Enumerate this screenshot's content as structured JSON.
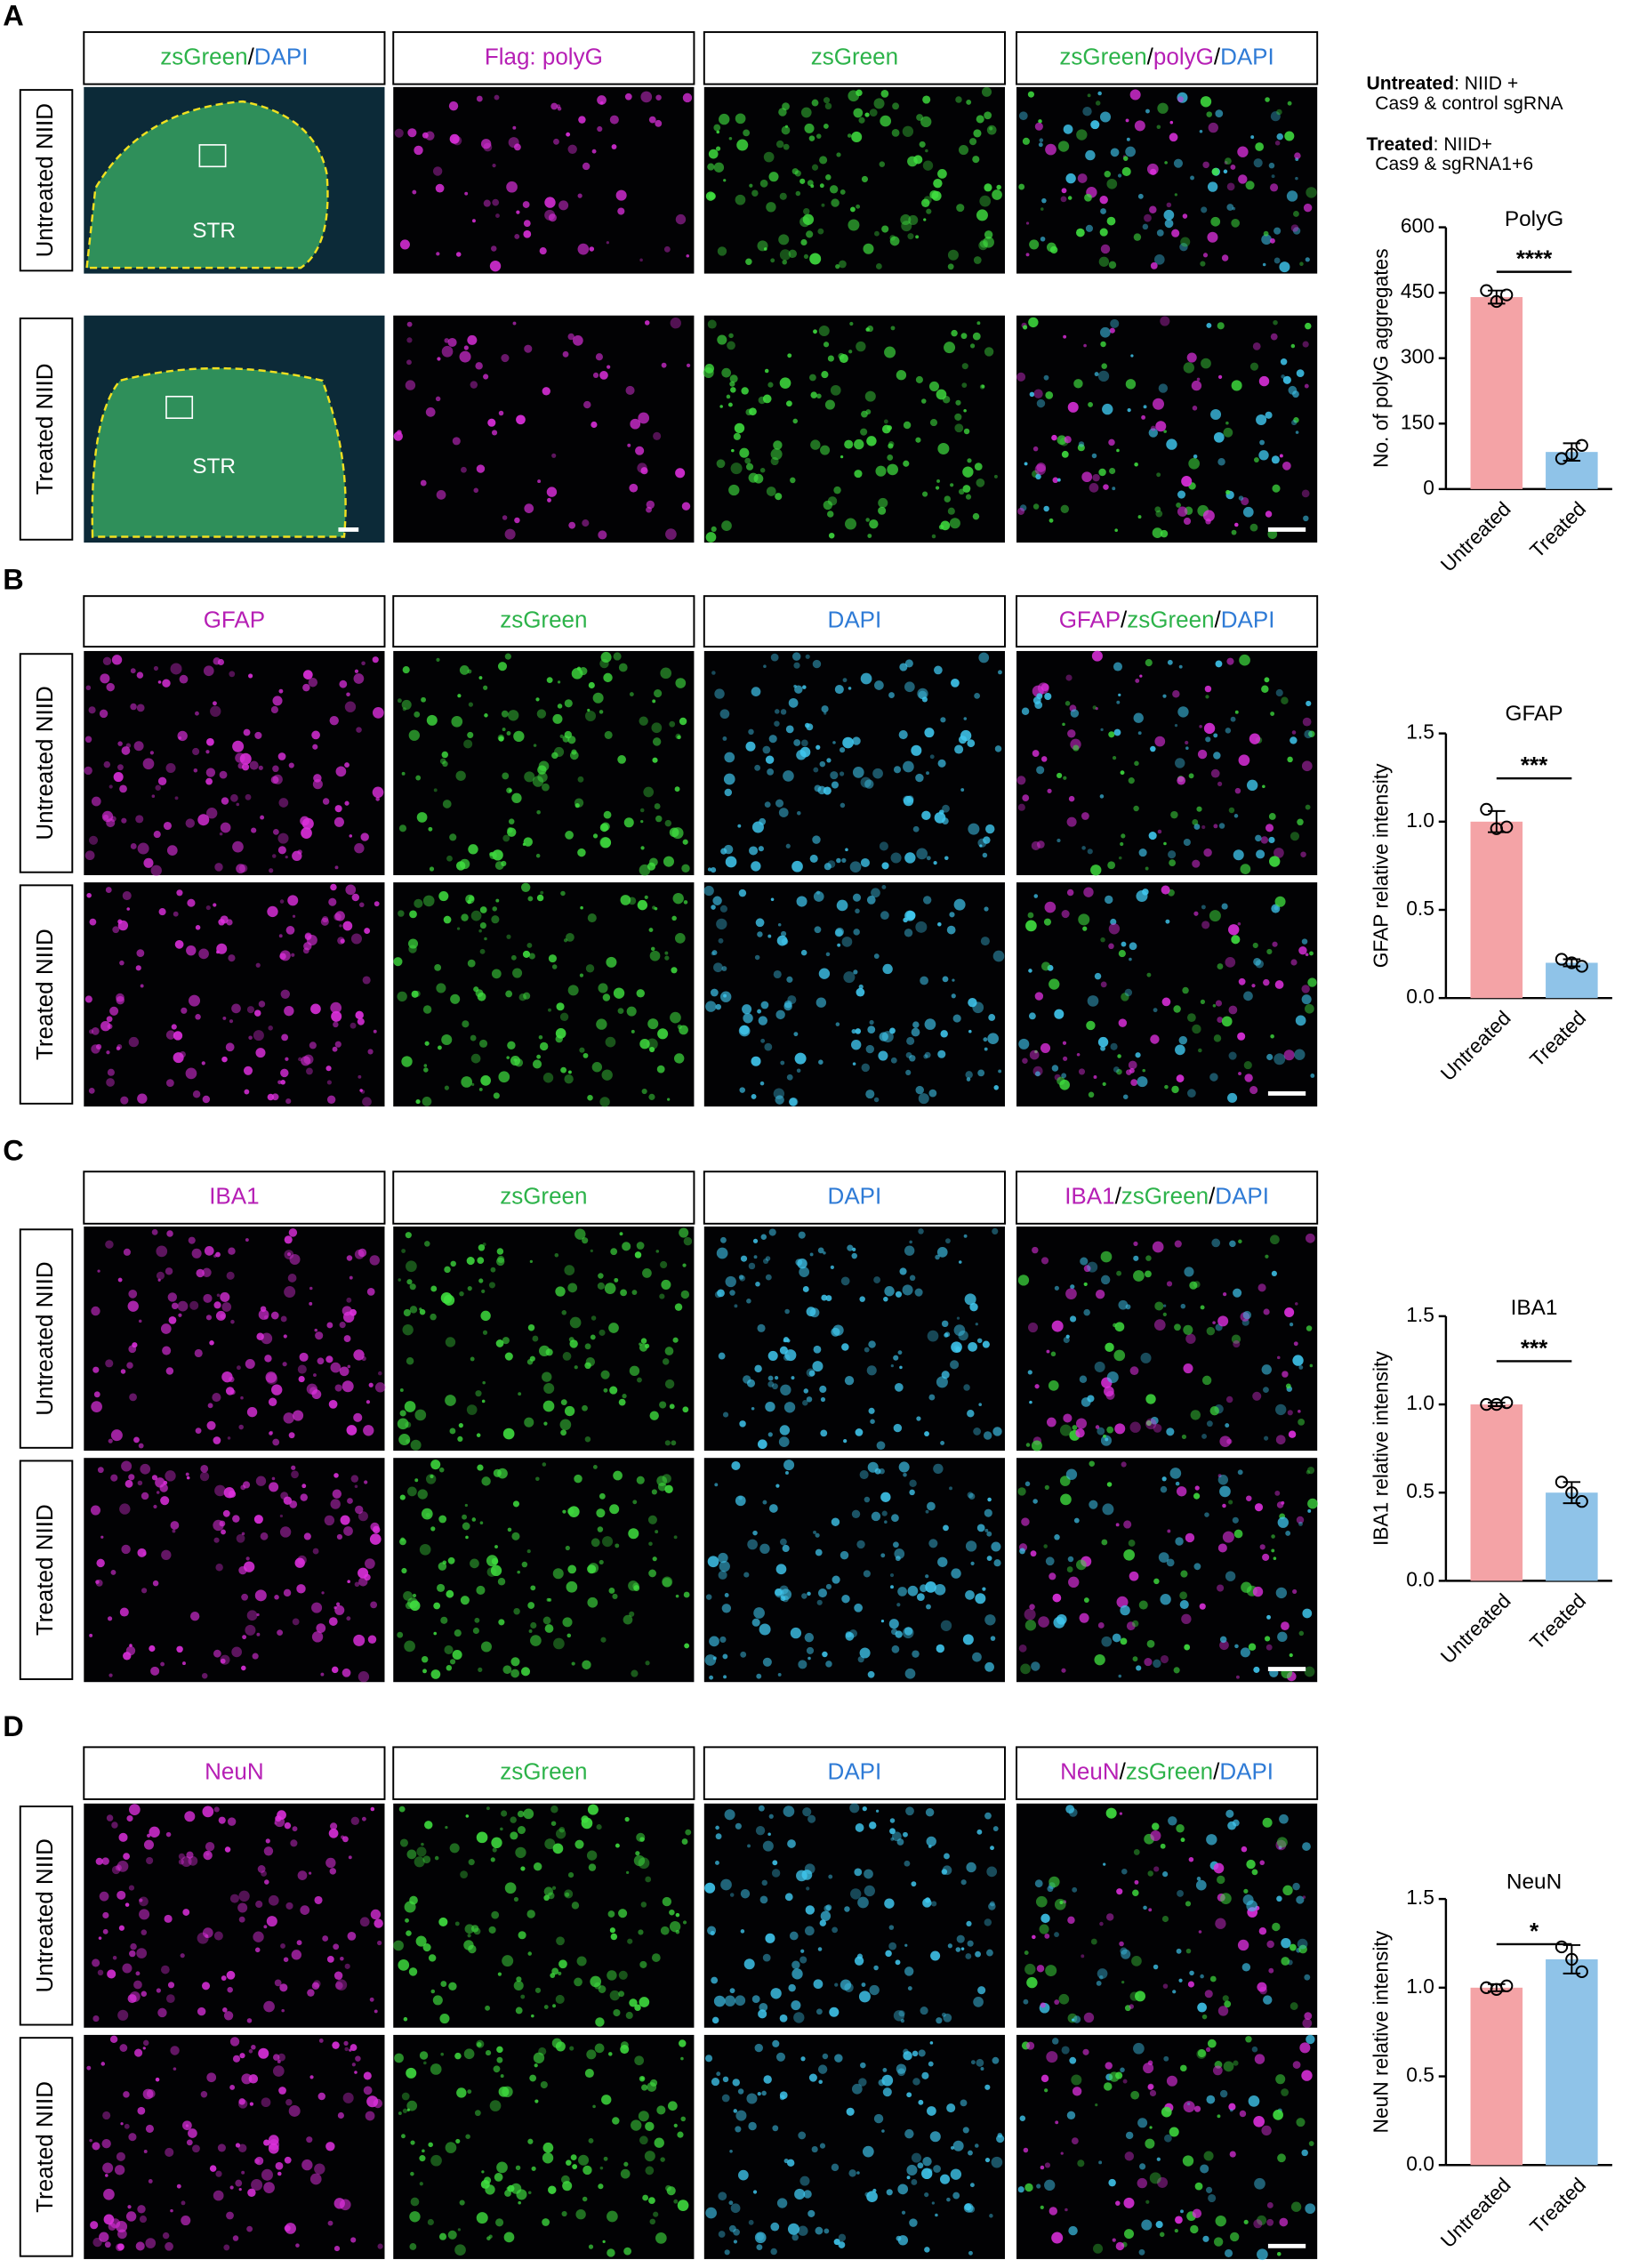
{
  "panels": [
    {
      "label": "A",
      "headers": [
        [
          {
            "text": "zsGreen",
            "color": "#2db34a"
          },
          {
            "text": "/",
            "color": "#000000"
          },
          {
            "text": "DAPI",
            "color": "#2f7bd6"
          }
        ],
        [
          {
            "text": "Flag: polyG",
            "color": "#b61fb5"
          }
        ],
        [
          {
            "text": "zsGreen",
            "color": "#2db34a"
          }
        ],
        [
          {
            "text": "zsGreen",
            "color": "#2db34a"
          },
          {
            "text": "/",
            "color": "#000000"
          },
          {
            "text": "polyG",
            "color": "#b61fb5"
          },
          {
            "text": "/",
            "color": "#000000"
          },
          {
            "text": "DAPI",
            "color": "#2f7bd6"
          }
        ]
      ],
      "rows": [
        "Untreated NIID",
        "Treated NIID"
      ],
      "region_labels": [
        "STR",
        "STR"
      ]
    },
    {
      "label": "B",
      "headers": [
        [
          {
            "text": "GFAP",
            "color": "#b61fb5"
          }
        ],
        [
          {
            "text": "zsGreen",
            "color": "#2db34a"
          }
        ],
        [
          {
            "text": "DAPI",
            "color": "#2f7bd6"
          }
        ],
        [
          {
            "text": "GFAP",
            "color": "#b61fb5"
          },
          {
            "text": "/",
            "color": "#000000"
          },
          {
            "text": "zsGreen",
            "color": "#2db34a"
          },
          {
            "text": "/",
            "color": "#000000"
          },
          {
            "text": "DAPI",
            "color": "#2f7bd6"
          }
        ]
      ],
      "rows": [
        "Untreated NIID",
        "Treated NIID"
      ]
    },
    {
      "label": "C",
      "headers": [
        [
          {
            "text": "IBA1",
            "color": "#b61fb5"
          }
        ],
        [
          {
            "text": "zsGreen",
            "color": "#2db34a"
          }
        ],
        [
          {
            "text": "DAPI",
            "color": "#2f7bd6"
          }
        ],
        [
          {
            "text": "IBA1",
            "color": "#b61fb5"
          },
          {
            "text": "/",
            "color": "#000000"
          },
          {
            "text": "zsGreen",
            "color": "#2db34a"
          },
          {
            "text": "/",
            "color": "#000000"
          },
          {
            "text": "DAPI",
            "color": "#2f7bd6"
          }
        ]
      ],
      "rows": [
        "Untreated NIID",
        "Treated NIID"
      ]
    },
    {
      "label": "D",
      "headers": [
        [
          {
            "text": "NeuN",
            "color": "#b61fb5"
          }
        ],
        [
          {
            "text": "zsGreen",
            "color": "#2db34a"
          }
        ],
        [
          {
            "text": "DAPI",
            "color": "#2f7bd6"
          }
        ],
        [
          {
            "text": "NeuN",
            "color": "#b61fb5"
          },
          {
            "text": "/",
            "color": "#000000"
          },
          {
            "text": "zsGreen",
            "color": "#2db34a"
          },
          {
            "text": "/",
            "color": "#000000"
          },
          {
            "text": "DAPI",
            "color": "#2f7bd6"
          }
        ]
      ],
      "rows": [
        "Untreated NIID",
        "Treated NIID"
      ]
    }
  ],
  "notes": [
    {
      "term": "Untreated",
      "text": ": NIID +",
      "line2": "Cas9 & control sgRNA"
    },
    {
      "term": "Treated",
      "text": ": NIID+",
      "line2": "Cas9 & sgRNA1+6"
    }
  ],
  "chart_data": [
    {
      "type": "bar",
      "title": "PolyG",
      "ylabel": "No. of polyG aggregates",
      "categories": [
        "Untreated",
        "Treated"
      ],
      "colors": [
        "#f4a3a6",
        "#8fc3e8"
      ],
      "values": [
        440,
        85
      ],
      "errors": [
        15,
        20
      ],
      "points": [
        [
          455,
          430,
          445
        ],
        [
          70,
          80,
          100
        ]
      ],
      "significance": "****",
      "ylim": [
        0,
        600
      ],
      "yticks": [
        0,
        150,
        300,
        450,
        600
      ]
    },
    {
      "type": "bar",
      "title": "GFAP",
      "ylabel": "GFAP relative intensity",
      "categories": [
        "Untreated",
        "Treated"
      ],
      "colors": [
        "#f4a3a6",
        "#8fc3e8"
      ],
      "values": [
        1.0,
        0.2
      ],
      "errors": [
        0.06,
        0.02
      ],
      "points": [
        [
          1.07,
          0.96,
          0.97
        ],
        [
          0.22,
          0.2,
          0.18
        ]
      ],
      "significance": "***",
      "ylim": [
        0,
        1.5
      ],
      "yticks": [
        {
          "value": 0,
          "label": "0.0"
        },
        0.5,
        {
          "value": 1,
          "label": "1.0"
        },
        1.5
      ]
    },
    {
      "type": "bar",
      "title": "IBA1",
      "ylabel": "IBA1 relative intensity",
      "categories": [
        "Untreated",
        "Treated"
      ],
      "colors": [
        "#f4a3a6",
        "#8fc3e8"
      ],
      "values": [
        1.0,
        0.5
      ],
      "errors": [
        0.01,
        0.06
      ],
      "points": [
        [
          1.0,
          1.0,
          1.01
        ],
        [
          0.56,
          0.5,
          0.45
        ]
      ],
      "significance": "***",
      "ylim": [
        0,
        1.5
      ],
      "yticks": [
        {
          "value": 0,
          "label": "0.0"
        },
        0.5,
        {
          "value": 1,
          "label": "1.0"
        },
        1.5
      ]
    },
    {
      "type": "bar",
      "title": "NeuN",
      "ylabel": "NeuN relative intensity",
      "categories": [
        "Untreated",
        "Treated"
      ],
      "colors": [
        "#f4a3a6",
        "#8fc3e8"
      ],
      "values": [
        1.0,
        1.16
      ],
      "errors": [
        0.02,
        0.08
      ],
      "points": [
        [
          1.0,
          0.99,
          1.01
        ],
        [
          1.23,
          1.16,
          1.09
        ]
      ],
      "significance": "*",
      "ylim": [
        0,
        1.5
      ],
      "yticks": [
        {
          "value": 0,
          "label": "0.0"
        },
        0.5,
        {
          "value": 1,
          "label": "1.0"
        },
        1.5
      ]
    }
  ]
}
